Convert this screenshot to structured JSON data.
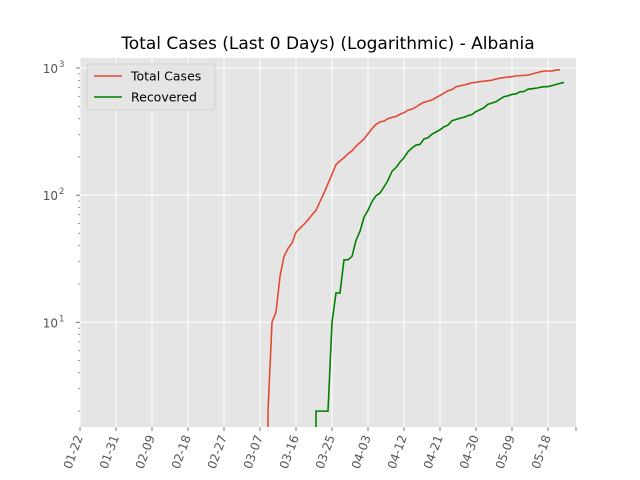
{
  "chart_data": {
    "type": "line",
    "title": "Total Cases (Last 0 Days) (Logarithmic) - Albania",
    "xlabel": "",
    "ylabel": "",
    "yscale": "log",
    "ylim": [
      1.5,
      1200
    ],
    "xlim": [
      "2020-01-22",
      "2020-05-25"
    ],
    "x_ticks": [
      "01-22",
      "01-31",
      "02-09",
      "02-18",
      "02-27",
      "03-07",
      "03-16",
      "03-25",
      "04-03",
      "04-12",
      "04-21",
      "04-30",
      "05-09",
      "05-18"
    ],
    "y_ticks": [
      {
        "value": 10,
        "base": "10",
        "exp": "1"
      },
      {
        "value": 100,
        "base": "10",
        "exp": "2"
      },
      {
        "value": 1000,
        "base": "10",
        "exp": "3"
      }
    ],
    "grid": true,
    "legend": "top-left",
    "series": [
      {
        "name": "Total Cases",
        "color": "#e24a33",
        "points": [
          [
            "2020-03-09",
            1.5
          ],
          [
            "2020-03-09",
            2
          ],
          [
            "2020-03-10",
            10
          ],
          [
            "2020-03-11",
            12
          ],
          [
            "2020-03-12",
            23
          ],
          [
            "2020-03-13",
            33
          ],
          [
            "2020-03-14",
            38
          ],
          [
            "2020-03-15",
            42
          ],
          [
            "2020-03-16",
            51
          ],
          [
            "2020-03-17",
            55
          ],
          [
            "2020-03-18",
            59
          ],
          [
            "2020-03-19",
            64
          ],
          [
            "2020-03-20",
            70
          ],
          [
            "2020-03-21",
            76
          ],
          [
            "2020-03-22",
            89
          ],
          [
            "2020-03-23",
            104
          ],
          [
            "2020-03-24",
            123
          ],
          [
            "2020-03-25",
            146
          ],
          [
            "2020-03-26",
            174
          ],
          [
            "2020-03-27",
            186
          ],
          [
            "2020-03-28",
            197
          ],
          [
            "2020-03-29",
            212
          ],
          [
            "2020-03-30",
            223
          ],
          [
            "2020-03-31",
            243
          ],
          [
            "2020-04-01",
            259
          ],
          [
            "2020-04-02",
            277
          ],
          [
            "2020-04-03",
            304
          ],
          [
            "2020-04-04",
            333
          ],
          [
            "2020-04-05",
            361
          ],
          [
            "2020-04-06",
            377
          ],
          [
            "2020-04-07",
            383
          ],
          [
            "2020-04-08",
            400
          ],
          [
            "2020-04-09",
            409
          ],
          [
            "2020-04-10",
            416
          ],
          [
            "2020-04-11",
            433
          ],
          [
            "2020-04-12",
            446
          ],
          [
            "2020-04-13",
            467
          ],
          [
            "2020-04-14",
            475
          ],
          [
            "2020-04-15",
            494
          ],
          [
            "2020-04-16",
            518
          ],
          [
            "2020-04-17",
            539
          ],
          [
            "2020-04-18",
            548
          ],
          [
            "2020-04-19",
            562
          ],
          [
            "2020-04-20",
            584
          ],
          [
            "2020-04-21",
            609
          ],
          [
            "2020-04-22",
            634
          ],
          [
            "2020-04-23",
            663
          ],
          [
            "2020-04-24",
            678
          ],
          [
            "2020-04-25",
            712
          ],
          [
            "2020-04-26",
            726
          ],
          [
            "2020-04-27",
            736
          ],
          [
            "2020-04-28",
            750
          ],
          [
            "2020-04-29",
            766
          ],
          [
            "2020-04-30",
            773
          ],
          [
            "2020-05-01",
            782
          ],
          [
            "2020-05-02",
            789
          ],
          [
            "2020-05-03",
            795
          ],
          [
            "2020-05-04",
            803
          ],
          [
            "2020-05-05",
            820
          ],
          [
            "2020-05-06",
            832
          ],
          [
            "2020-05-07",
            842
          ],
          [
            "2020-05-08",
            850
          ],
          [
            "2020-05-09",
            856
          ],
          [
            "2020-05-10",
            868
          ],
          [
            "2020-05-11",
            872
          ],
          [
            "2020-05-12",
            876
          ],
          [
            "2020-05-13",
            880
          ],
          [
            "2020-05-14",
            898
          ],
          [
            "2020-05-15",
            916
          ],
          [
            "2020-05-16",
            933
          ],
          [
            "2020-05-17",
            946
          ],
          [
            "2020-05-18",
            948
          ],
          [
            "2020-05-19",
            949
          ],
          [
            "2020-05-20",
            964
          ],
          [
            "2020-05-21",
            969
          ]
        ]
      },
      {
        "name": "Recovered",
        "color": "#008000",
        "points": [
          [
            "2020-03-21",
            1.5
          ],
          [
            "2020-03-21",
            2
          ],
          [
            "2020-03-24",
            2
          ],
          [
            "2020-03-25",
            10
          ],
          [
            "2020-03-26",
            17
          ],
          [
            "2020-03-27",
            17
          ],
          [
            "2020-03-28",
            31
          ],
          [
            "2020-03-29",
            31
          ],
          [
            "2020-03-30",
            33
          ],
          [
            "2020-03-31",
            44
          ],
          [
            "2020-04-01",
            52
          ],
          [
            "2020-04-02",
            67
          ],
          [
            "2020-04-03",
            76
          ],
          [
            "2020-04-04",
            89
          ],
          [
            "2020-04-05",
            99
          ],
          [
            "2020-04-06",
            104
          ],
          [
            "2020-04-07",
            116
          ],
          [
            "2020-04-08",
            131
          ],
          [
            "2020-04-09",
            154
          ],
          [
            "2020-04-10",
            165
          ],
          [
            "2020-04-11",
            182
          ],
          [
            "2020-04-12",
            197
          ],
          [
            "2020-04-13",
            220
          ],
          [
            "2020-04-14",
            235
          ],
          [
            "2020-04-15",
            248
          ],
          [
            "2020-04-16",
            251
          ],
          [
            "2020-04-17",
            277
          ],
          [
            "2020-04-18",
            283
          ],
          [
            "2020-04-19",
            302
          ],
          [
            "2020-04-20",
            314
          ],
          [
            "2020-04-21",
            327
          ],
          [
            "2020-04-22",
            345
          ],
          [
            "2020-04-23",
            356
          ],
          [
            "2020-04-24",
            385
          ],
          [
            "2020-04-25",
            394
          ],
          [
            "2020-04-26",
            403
          ],
          [
            "2020-04-27",
            410
          ],
          [
            "2020-04-28",
            422
          ],
          [
            "2020-04-29",
            431
          ],
          [
            "2020-04-30",
            455
          ],
          [
            "2020-05-01",
            470
          ],
          [
            "2020-05-02",
            488
          ],
          [
            "2020-05-03",
            519
          ],
          [
            "2020-05-04",
            531
          ],
          [
            "2020-05-05",
            543
          ],
          [
            "2020-05-06",
            570
          ],
          [
            "2020-05-07",
            595
          ],
          [
            "2020-05-08",
            605
          ],
          [
            "2020-05-09",
            620
          ],
          [
            "2020-05-10",
            627
          ],
          [
            "2020-05-11",
            650
          ],
          [
            "2020-05-12",
            654
          ],
          [
            "2020-05-13",
            682
          ],
          [
            "2020-05-14",
            688
          ],
          [
            "2020-05-15",
            694
          ],
          [
            "2020-05-16",
            705
          ],
          [
            "2020-05-17",
            714
          ],
          [
            "2020-05-18",
            715
          ],
          [
            "2020-05-19",
            727
          ],
          [
            "2020-05-20",
            742
          ],
          [
            "2020-05-21",
            758
          ],
          [
            "2020-05-22",
            771
          ]
        ]
      }
    ]
  }
}
